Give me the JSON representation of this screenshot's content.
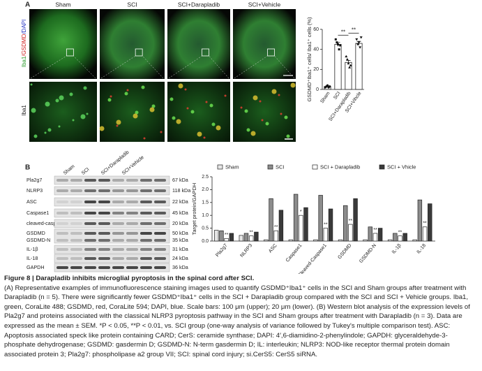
{
  "panel_labels": [
    "A",
    "B"
  ],
  "image_columns": [
    "Sham",
    "SCI",
    "SCI+Darapladib",
    "SCI+Vehicle"
  ],
  "stain_labels": {
    "upper": [
      "Iba1",
      "/GSDMD",
      "/DAPI"
    ],
    "lower": "Iba1"
  },
  "blot": {
    "lanes": [
      "Sham",
      "SCI",
      "SCI+Darapladib",
      "SCI+Vehicle"
    ],
    "rows": [
      {
        "name": "Pla2g7",
        "size": "67 kDa"
      },
      {
        "name": "NLRP3",
        "size": "118 kDa"
      },
      {
        "name": "ASC",
        "size": "22 kDa"
      },
      {
        "name": "Caspase1",
        "size": "45 kDa"
      },
      {
        "name": "cleaved-caspase1",
        "size": "20 kDa"
      },
      {
        "name": "GSDMD",
        "size": "50 kDa"
      },
      {
        "name": "GSDMD-N",
        "size": "35 kDa"
      },
      {
        "name": "IL-1β",
        "size": "31 kDa"
      },
      {
        "name": "IL-18",
        "size": "24 kDa"
      },
      {
        "name": "GAPDH",
        "size": "36 kDa"
      }
    ]
  },
  "chart_data": [
    {
      "type": "bar_points",
      "y_label": "GSDMD⁺Iba1⁺ cells/ Iba1⁺ cells (%)",
      "categories": [
        "Sham",
        "SCI",
        "SCI+Darapladib",
        "SCI+Vihcle"
      ],
      "values": [
        3,
        45,
        27,
        46
      ],
      "errors": [
        0.5,
        2,
        2,
        2
      ],
      "points": [
        [
          2,
          3,
          4,
          2,
          3
        ],
        [
          50,
          47,
          45,
          40,
          44
        ],
        [
          33,
          30,
          26,
          22,
          24
        ],
        [
          50,
          45,
          47,
          42,
          52
        ]
      ],
      "color": "#ffffff",
      "significance": [
        "**",
        "**"
      ],
      "ylim": [
        0,
        60
      ],
      "yticks": [
        0,
        20,
        40,
        60
      ]
    },
    {
      "type": "grouped_bar",
      "y_label": "Target protein/GAPDH",
      "categories": [
        "Pla2g7",
        "NLRP3",
        "ASC",
        "Caspase1",
        "Cleaved-Caspase1",
        "GSDMD",
        "GSDMD-N",
        "IL-1β",
        "IL-18"
      ],
      "series": [
        {
          "name": "Sham",
          "color": "#e6e6e6",
          "values": [
            0.42,
            0.22,
            0.05,
            0.05,
            0.05,
            0.05,
            0.05,
            0.05,
            0.05
          ]
        },
        {
          "name": "SCI",
          "color": "#8c8c8c",
          "values": [
            0.4,
            0.3,
            1.65,
            1.82,
            1.78,
            1.38,
            0.55,
            0.3,
            1.6
          ]
        },
        {
          "name": "SCI + Darapladib",
          "color": "#ffffff",
          "values": [
            0.1,
            0.2,
            0.4,
            1.0,
            0.5,
            0.65,
            0.3,
            0.2,
            0.55
          ]
        },
        {
          "name": "SCI + Vhicle",
          "color": "#3a3a3a",
          "values": [
            0.3,
            0.35,
            1.2,
            1.3,
            1.25,
            1.65,
            0.5,
            0.3,
            1.45
          ]
        }
      ],
      "significance": [
        "**",
        "**",
        "**",
        "*",
        "**",
        "**",
        "**",
        "**",
        "**"
      ],
      "ylim": [
        0,
        2.5
      ],
      "yticks": [
        {
          "value": 0,
          "label": "0.0"
        },
        {
          "value": 0.5,
          "label": "0.5"
        },
        {
          "value": 1,
          "label": "1.0"
        },
        {
          "value": 1.5,
          "label": "1.5"
        },
        {
          "value": 2,
          "label": "2.0"
        },
        {
          "value": 2.5,
          "label": "2.5"
        }
      ],
      "legend": "top"
    }
  ],
  "caption": {
    "title": "Figure 8 | Darapladib inhibits microglial pyroptosis in the spinal cord after SCI.",
    "body": "(A) Representative examples of immunofluorescence staining images used to quantify GSDMD⁺Iba1⁺ cells in the SCI and Sham groups after treatment with Darapladib (n = 5). There were significantly fewer GSDMD⁺Iba1⁺ cells in the SCI + Darapladib group compared with the SCI and SCI + Vehicle groups. Iba1, green, CoraLite 488; GSDMD, red, CoraLite 594; DAPI, blue. Scale bars: 100 μm (upper); 20 μm (lower). (B) Western blot analysis of the expression levels of Pla2g7 and proteins associated with the classical NLRP3 pyroptosis pathway in the SCI and Sham groups after treatment with Darapladib (n = 3). Data are expressed as the mean ± SEM. *P < 0.05, **P < 0.01, vs. SCI group (one-way analysis of variance followed by Tukey's multiple comparison test). ASC: Apoptosis associated speck like protein containing CARD; CerS: ceramide synthase; DAPI: 4′,6-diamidino-2-phenylindole; GAPDH: glyceraldehyde-3-phosphate dehydrogenase; GSDMD: gasdermin D; GSDMD-N: N-term gasdermin D; IL: interleukin; NLRP3: NOD-like receptor thermal protein domain associated protein 3; Pla2g7: phospholipase a2 group VII; SCI: spinal cord injury; si.CerS5: CerS5 siRNA."
  }
}
